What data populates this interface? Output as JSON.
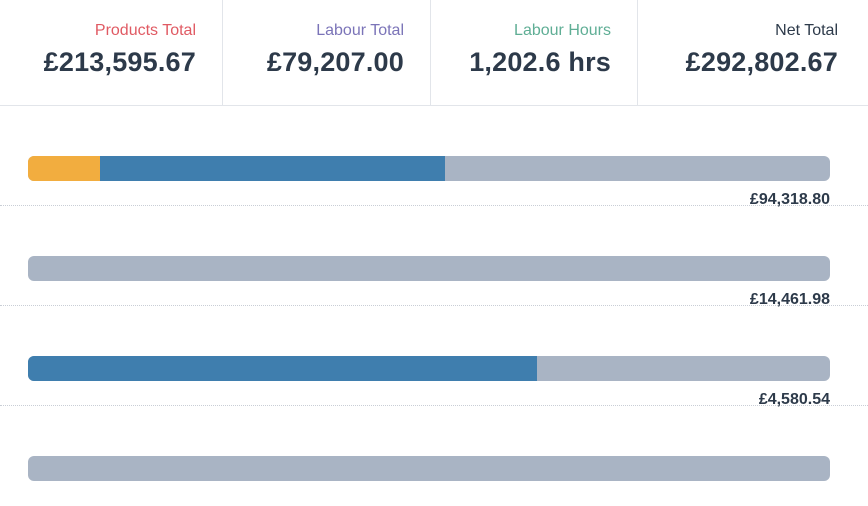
{
  "stats": [
    {
      "label": "Products Total",
      "value": "£213,595.67",
      "label_color": "#e05a63"
    },
    {
      "label": "Labour Total",
      "value": "£79,207.00",
      "label_color": "#7b74b8"
    },
    {
      "label": "Labour Hours",
      "value": "1,202.6 hrs",
      "label_color": "#5fae95"
    },
    {
      "label": "Net Total",
      "value": "£292,802.67",
      "label_color": "#2d3a4a"
    }
  ],
  "colors": {
    "track": "#a9b4c4",
    "products": "#f2ad3f",
    "labour": "#3f7eae"
  },
  "rows": [
    {
      "amount": "£94,318.80",
      "segments": [
        {
          "type": "products",
          "fraction": 0.09
        },
        {
          "type": "labour",
          "fraction": 0.43
        }
      ]
    },
    {
      "amount": "£14,461.98",
      "segments": []
    },
    {
      "amount": "£4,580.54",
      "segments": [
        {
          "type": "labour",
          "fraction": 0.635
        }
      ]
    },
    {
      "amount": "",
      "segments": []
    }
  ]
}
